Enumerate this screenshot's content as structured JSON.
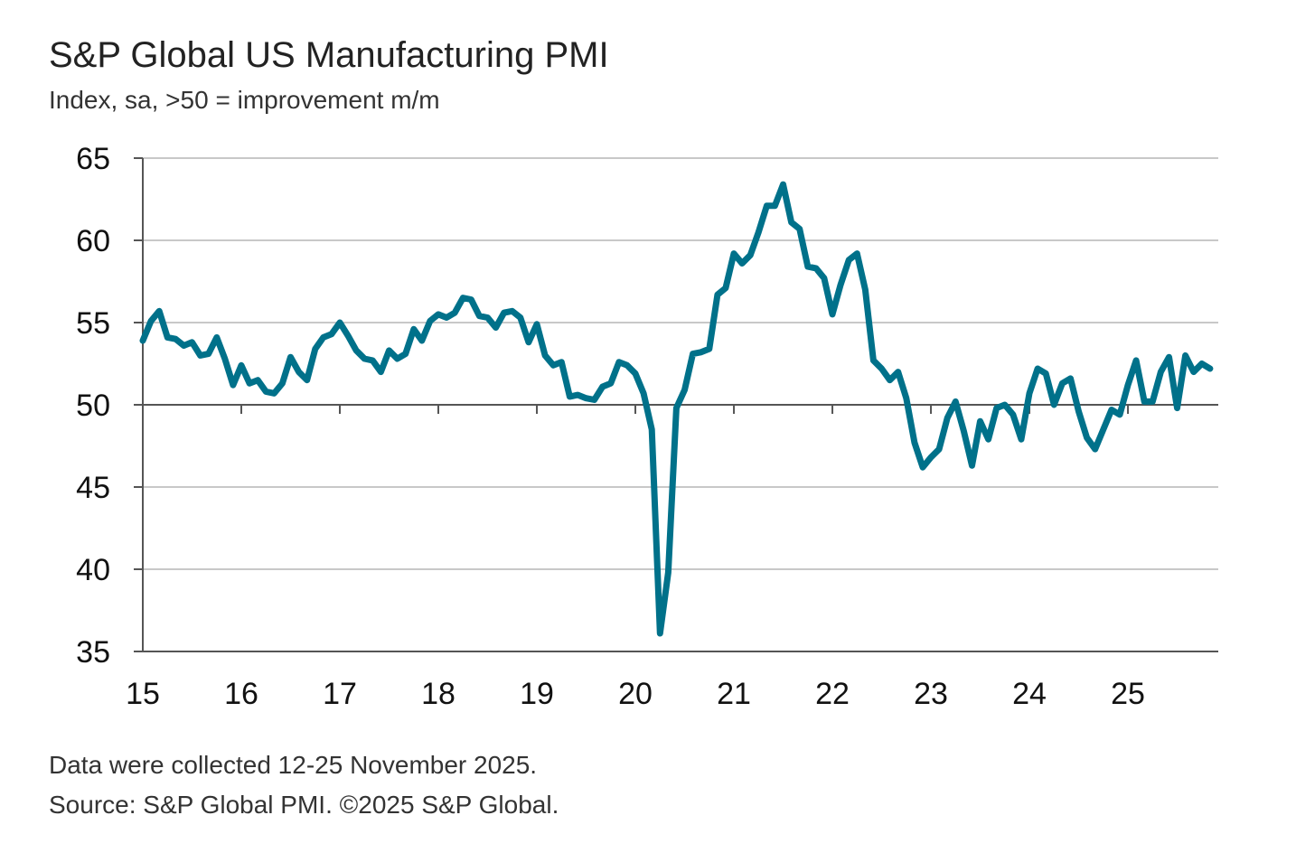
{
  "chart_data": {
    "type": "line",
    "title": "S&P Global US Manufacturing PMI",
    "subtitle": "Index, sa, >50 = improvement m/m",
    "ylim": [
      35,
      65
    ],
    "yticks": [
      35,
      40,
      45,
      50,
      55,
      60,
      65
    ],
    "xlim": [
      2015.0,
      2025.917
    ],
    "xtick_labels": [
      "15",
      "16",
      "17",
      "18",
      "19",
      "20",
      "21",
      "22",
      "23",
      "24",
      "25"
    ],
    "reference_line": 50,
    "grid": true,
    "legend": "none",
    "series": [
      {
        "color": "#00718a",
        "start": "2015-01",
        "frequency": "monthly",
        "values": [
          53.9,
          55.1,
          55.7,
          54.1,
          54.0,
          53.6,
          53.8,
          53.0,
          53.1,
          54.1,
          52.8,
          51.2,
          52.4,
          51.3,
          51.5,
          50.8,
          50.7,
          51.3,
          52.9,
          52.0,
          51.5,
          53.4,
          54.1,
          54.3,
          55.0,
          54.2,
          53.3,
          52.8,
          52.7,
          52.0,
          53.3,
          52.8,
          53.1,
          54.6,
          53.9,
          55.1,
          55.5,
          55.3,
          55.6,
          56.5,
          56.4,
          55.4,
          55.3,
          54.7,
          55.6,
          55.7,
          55.3,
          53.8,
          54.9,
          53.0,
          52.4,
          52.6,
          50.5,
          50.6,
          50.4,
          50.3,
          51.1,
          51.3,
          52.6,
          52.4,
          51.9,
          50.7,
          48.5,
          36.1,
          39.8,
          49.8,
          50.9,
          53.1,
          53.2,
          53.4,
          56.7,
          57.1,
          59.2,
          58.6,
          59.1,
          60.5,
          62.1,
          62.1,
          63.4,
          61.1,
          60.7,
          58.4,
          58.3,
          57.7,
          55.5,
          57.3,
          58.8,
          59.2,
          57.0,
          52.7,
          52.2,
          51.5,
          52.0,
          50.4,
          47.7,
          46.2,
          46.8,
          47.3,
          49.2,
          50.2,
          48.4,
          46.3,
          49.0,
          47.9,
          49.8,
          50.0,
          49.4,
          47.9,
          50.7,
          52.2,
          51.9,
          50.0,
          51.3,
          51.6,
          49.6,
          48.0,
          47.3,
          48.5,
          49.7,
          49.4,
          51.2,
          52.7,
          50.2,
          50.2,
          52.0,
          52.9,
          49.8,
          53.0,
          52.0,
          52.5,
          52.2
        ]
      }
    ]
  },
  "footer": {
    "note": "Data were collected 12-25 November 2025.",
    "source": "Source: S&P Global PMI. ©2025 S&P Global."
  }
}
